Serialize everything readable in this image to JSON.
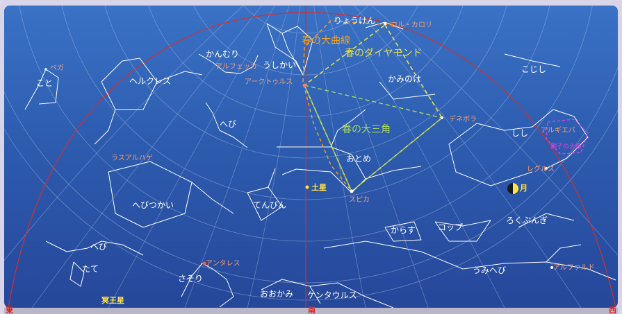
{
  "directions": {
    "east": "東",
    "south": "南",
    "west": "西"
  },
  "constellations": {
    "ryoken": "りょうけん",
    "ushikai": "うしかい",
    "kanmuri": "かんむり",
    "koto": "こと",
    "herukuresu": "ヘルクレス",
    "hebi_upper": "へび",
    "kaminoke": "かみのけ",
    "koshi": "こじし",
    "shishi": "しし",
    "otome": "おとめ",
    "tenbin": "てんびん",
    "hebitsukai": "へびつかい",
    "hebi_lower": "へび",
    "tate": "たて",
    "sasori": "さそり",
    "ookami": "おおかみ",
    "kentaurusu": "ケンタウルス",
    "karasu": "からす",
    "koppu": "コップ",
    "rokubungi": "ろくぶんぎ",
    "umihebi": "うみへび"
  },
  "stars": {
    "vega": "ベガ",
    "cor_caroli": "コル・カロリ",
    "alphecca": "アルフェッカ",
    "arcturus": "アークトゥルス",
    "denebola": "デネボラ",
    "algieba": "アルギエバ",
    "rasalhague": "ラスアルハゲ",
    "regulus": "レグルス",
    "spica": "スピカ",
    "antares": "アンタレス",
    "alphard": "アルファルド"
  },
  "asterisms": {
    "great_curve": "春の大曲線",
    "diamond": "春のダイヤモンド",
    "triangle": "春の大三角",
    "sickle": "獅子の大鎌"
  },
  "planets": {
    "saturn": "土星",
    "pluto": "冥王星"
  },
  "moon": {
    "label": "月"
  },
  "colors": {
    "sky_top": "#3a72c6",
    "sky_bottom": "#26479a",
    "grid": "#9fb6e0",
    "constellation_line": "#ffffff",
    "meridian": "#d03030",
    "great_curve": "#f0a020",
    "diamond": "#e8e040",
    "triangle": "#a8d860",
    "star_label": "#f2a07a",
    "planet": "#ffe24a",
    "sickle": "#e040e0"
  }
}
